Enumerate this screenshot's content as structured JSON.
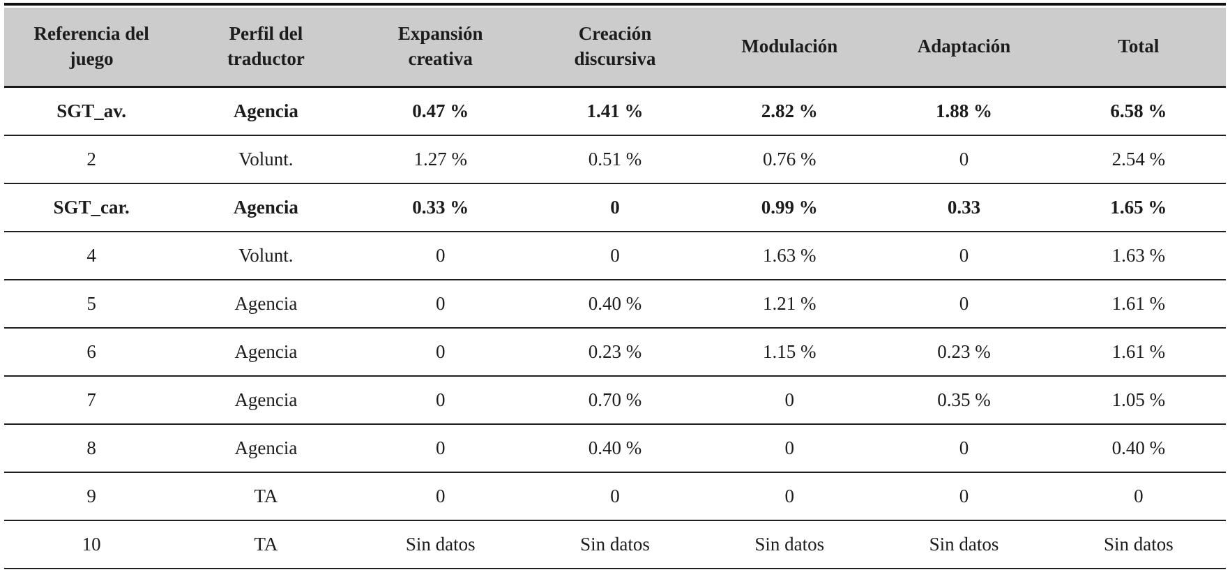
{
  "table": {
    "columns": [
      "Referencia del juego",
      "Perfil del traductor",
      "Expansión creativa",
      "Creación discursiva",
      "Modulación",
      "Adaptación",
      "Total"
    ],
    "rows": [
      {
        "bold": true,
        "cells": [
          "SGT_av.",
          "Agencia",
          "0.47 %",
          "1.41 %",
          "2.82 %",
          "1.88 %",
          "6.58 %"
        ]
      },
      {
        "bold": false,
        "cells": [
          "2",
          "Volunt.",
          "1.27 %",
          "0.51 %",
          "0.76 %",
          "0",
          "2.54 %"
        ]
      },
      {
        "bold": true,
        "cells": [
          "SGT_car.",
          "Agencia",
          "0.33 %",
          "0",
          "0.99 %",
          "0.33",
          "1.65 %"
        ]
      },
      {
        "bold": false,
        "cells": [
          "4",
          "Volunt.",
          "0",
          "0",
          "1.63 %",
          "0",
          "1.63 %"
        ]
      },
      {
        "bold": false,
        "cells": [
          "5",
          "Agencia",
          "0",
          "0.40 %",
          "1.21 %",
          "0",
          "1.61 %"
        ]
      },
      {
        "bold": false,
        "cells": [
          "6",
          "Agencia",
          "0",
          "0.23 %",
          "1.15 %",
          "0.23 %",
          "1.61 %"
        ]
      },
      {
        "bold": false,
        "cells": [
          "7",
          "Agencia",
          "0",
          "0.70 %",
          "0",
          "0.35 %",
          "1.05 %"
        ]
      },
      {
        "bold": false,
        "cells": [
          "8",
          "Agencia",
          "0",
          "0.40 %",
          "0",
          "0",
          "0.40 %"
        ]
      },
      {
        "bold": false,
        "cells": [
          "9",
          "TA",
          "0",
          "0",
          "0",
          "0",
          "0"
        ]
      },
      {
        "bold": false,
        "cells": [
          "10",
          "TA",
          "Sin datos",
          "Sin datos",
          "Sin datos",
          "Sin datos",
          "Sin datos"
        ]
      }
    ]
  },
  "colors": {
    "header_bg": "#cccccc",
    "text": "#1c1c1c",
    "top_rule": "#111111",
    "row_rule": "#1f1f1f"
  }
}
